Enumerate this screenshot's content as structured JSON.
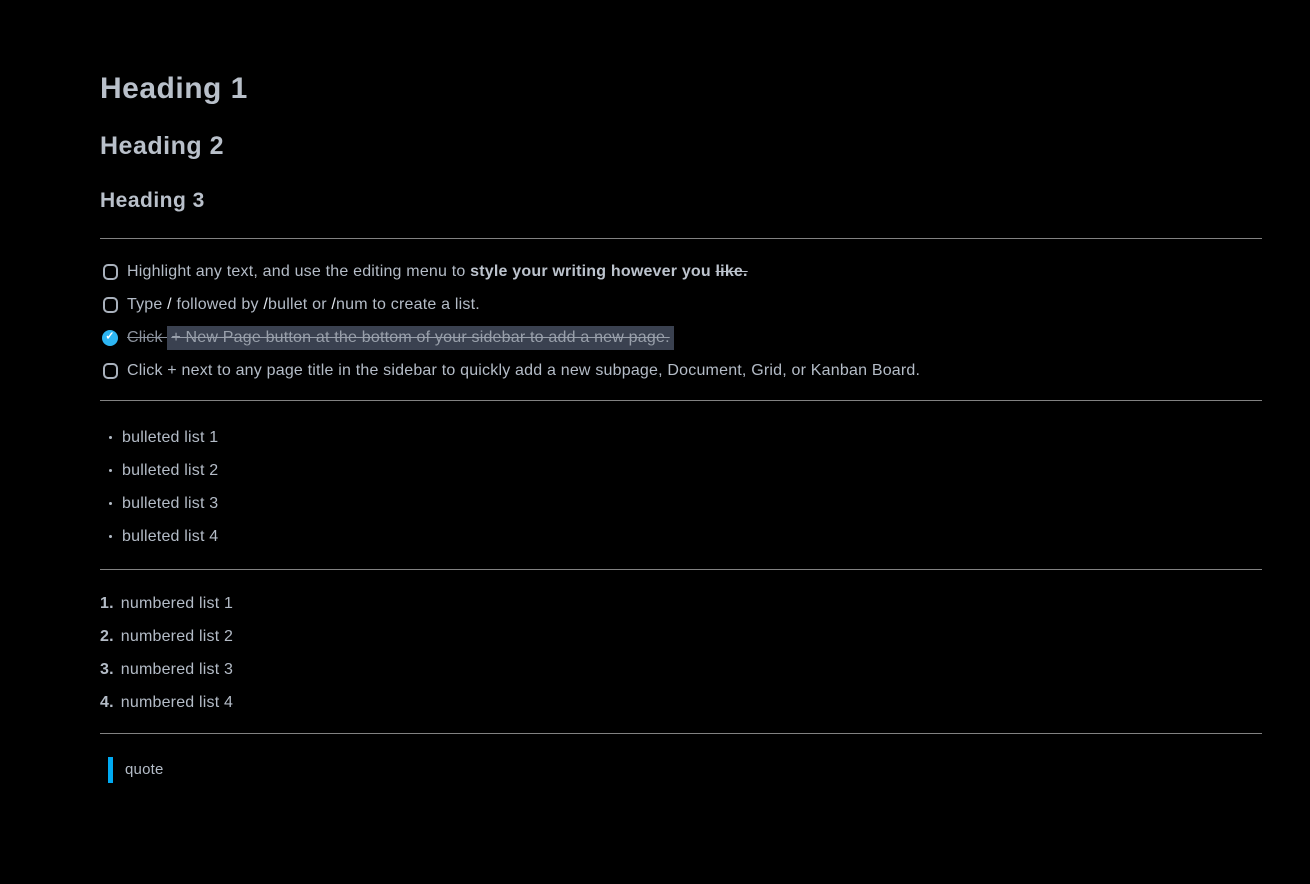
{
  "colors": {
    "background": "#000000",
    "body_text": "#b4bcc7",
    "heading_text": "#b9c0ca",
    "accent_cyan": "#2db5f2",
    "quote_bar_cyan": "#00aaf2",
    "highlight_background": "#3a4150",
    "strikethrough_text": "#8b929d",
    "divider_gray": "#828282"
  },
  "headings": {
    "h1": "Heading 1",
    "h2": "Heading 2",
    "h3": "Heading 3"
  },
  "icons": {
    "check_glyph": "✓"
  },
  "todos": {
    "items": [
      {
        "checked": false,
        "segments": [
          {
            "text": "Highlight any text, and use the editing menu to ",
            "style": "normal"
          },
          {
            "text": "style your writing however you ",
            "style": "bold"
          },
          {
            "text": "like.",
            "style": "bold-strike"
          }
        ]
      },
      {
        "checked": false,
        "segments": [
          {
            "text": "Type ",
            "style": "normal"
          },
          {
            "text": "/",
            "style": "bright"
          },
          {
            "text": " followed by ",
            "style": "normal"
          },
          {
            "text": "/",
            "style": "bright"
          },
          {
            "text": "bullet",
            "style": "normal"
          },
          {
            "text": " or ",
            "style": "normal"
          },
          {
            "text": "/",
            "style": "bright"
          },
          {
            "text": "num",
            "style": "normal"
          },
          {
            "text": " to create a list.",
            "style": "normal"
          }
        ]
      },
      {
        "checked": true,
        "segments": [
          {
            "text": "Click ",
            "style": "strikethrough"
          },
          {
            "text": "+ New Page button at the bottom of your sidebar to add a new page.",
            "style": "strikethrough-highlight"
          }
        ]
      },
      {
        "checked": false,
        "segments": [
          {
            "text": "Click + next to any page title in the sidebar to quickly add a new subpage, Document, Grid, or Kanban Board.",
            "style": "normal"
          }
        ]
      }
    ]
  },
  "bullets": {
    "items": [
      "bulleted list 1",
      "bulleted list 2",
      "bulleted list 3",
      "bulleted list 4"
    ]
  },
  "numbered": {
    "items": [
      {
        "marker": "1.",
        "text": "numbered list 1"
      },
      {
        "marker": "2.",
        "text": "numbered list 2"
      },
      {
        "marker": "3.",
        "text": "numbered list 3"
      },
      {
        "marker": "4.",
        "text": "numbered list 4"
      }
    ]
  },
  "quote": {
    "text": "quote"
  }
}
